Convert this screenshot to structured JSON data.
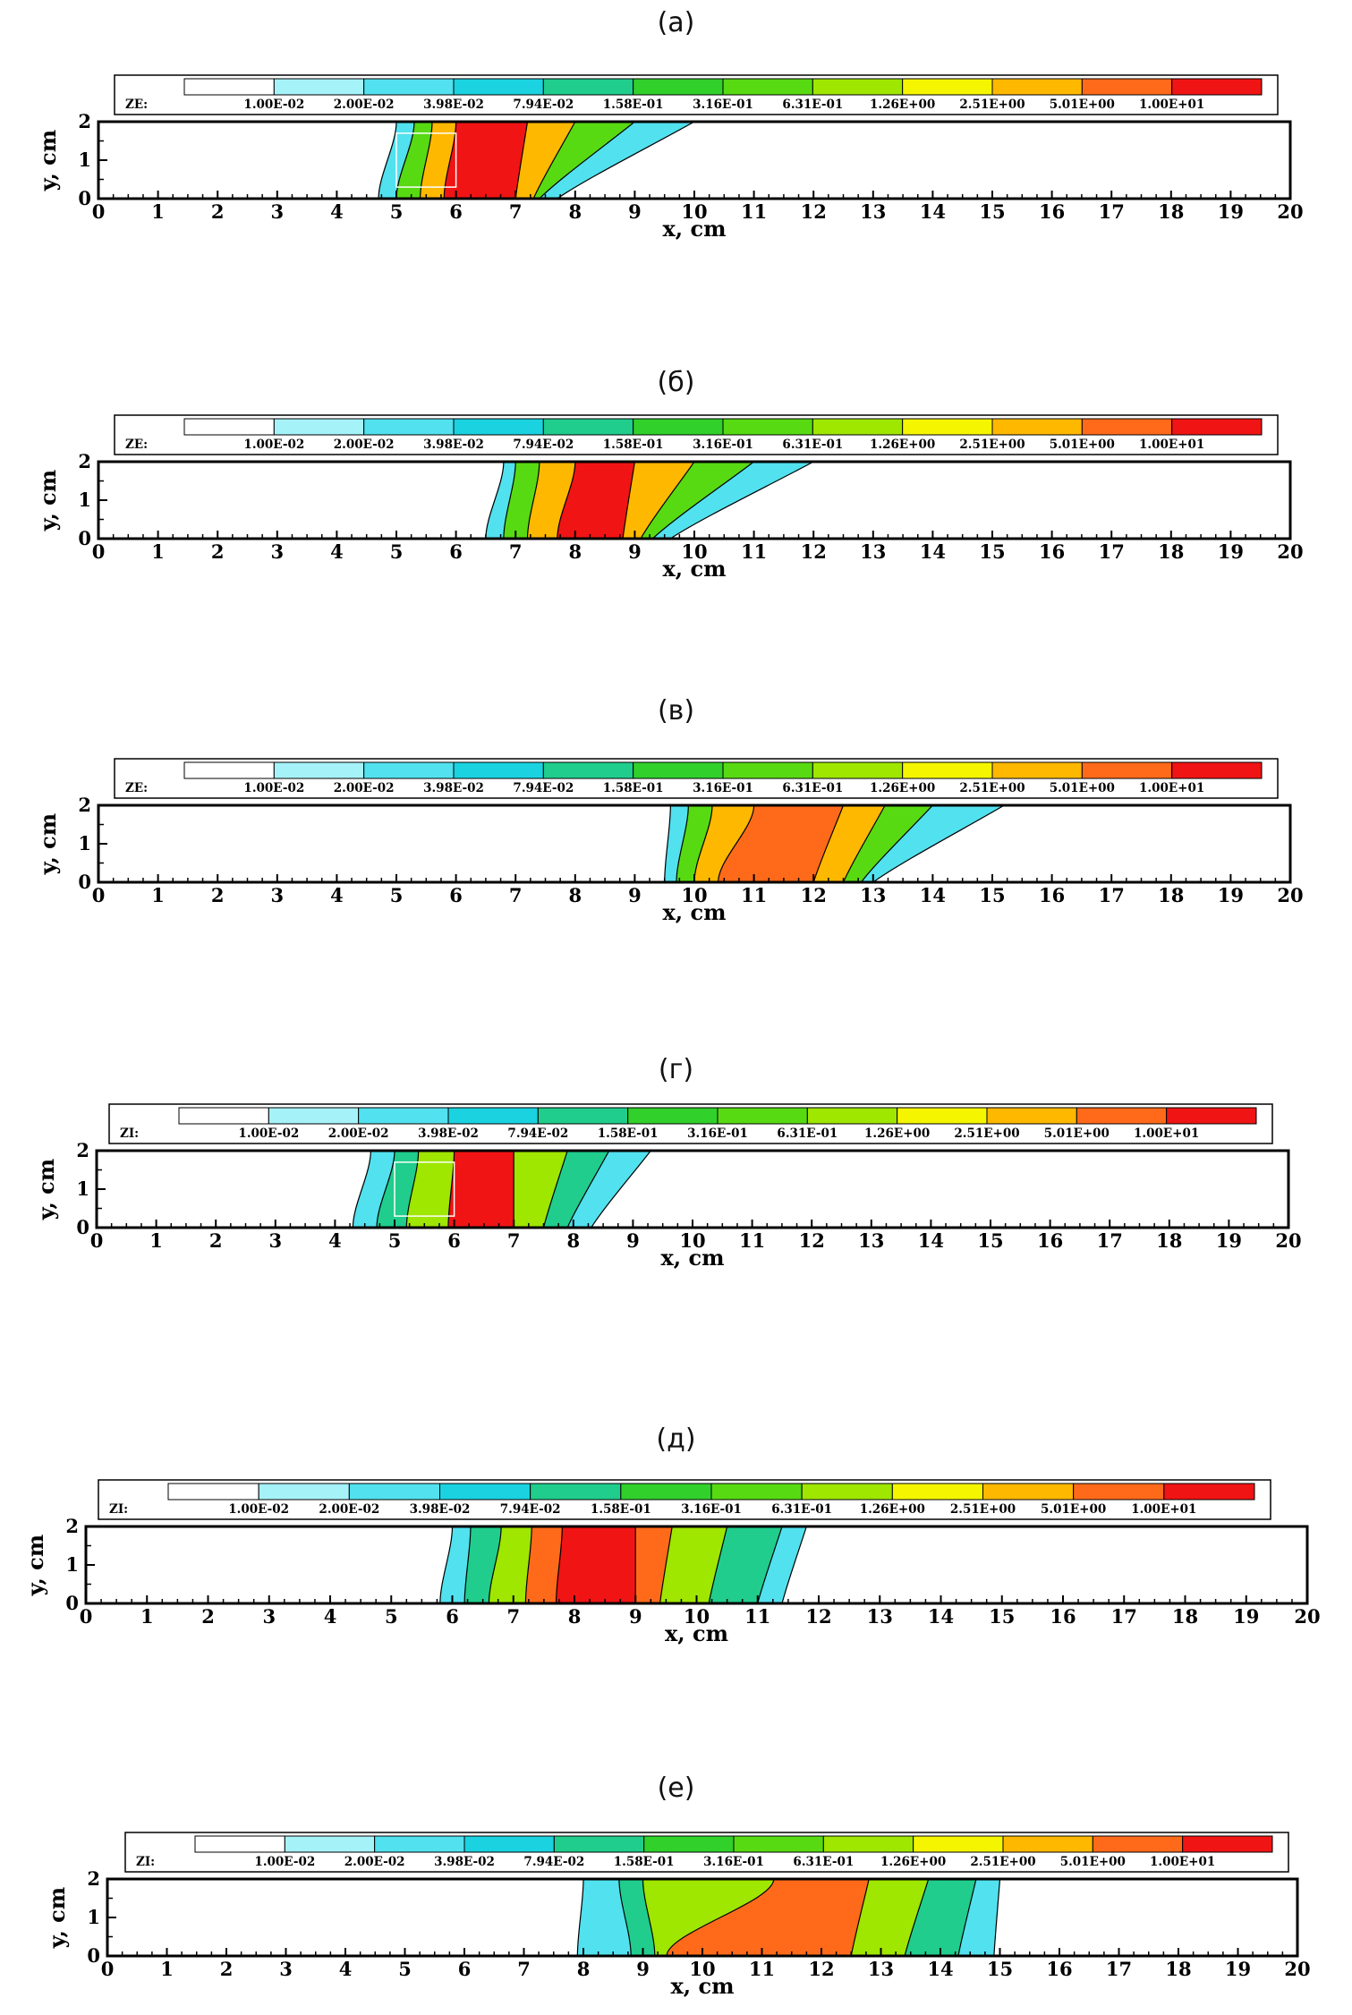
{
  "captions": [
    "(а)",
    "(б)",
    "(в)",
    "(г)",
    "(д)",
    "(е)"
  ],
  "colors": {
    "levels": [
      "#ffffff",
      "#a6f2f9",
      "#52e1ee",
      "#1ad2e0",
      "#20cd8c",
      "#31d02b",
      "#58da12",
      "#9fe600",
      "#f5f500",
      "#ffb800",
      "#ff6a1a",
      "#f01414"
    ]
  },
  "chart_data": [
    {
      "type": "heatmap",
      "title": "(а)",
      "variable_label": "ZE:",
      "legend_levels": [
        "1.00E-02",
        "2.00E-02",
        "3.98E-02",
        "7.94E-02",
        "1.58E-01",
        "3.16E-01",
        "6.31E-01",
        "1.26E+00",
        "2.51E+00",
        "5.01E+00",
        "1.00E+01"
      ],
      "xlabel": "x, cm",
      "ylabel": "y, cm",
      "xlim": [
        0,
        20
      ],
      "ylim": [
        0,
        2
      ],
      "x_ticks": [
        0,
        1,
        2,
        3,
        4,
        5,
        6,
        7,
        8,
        9,
        10,
        11,
        12,
        13,
        14,
        15,
        16,
        17,
        18,
        19,
        20
      ],
      "y_ticks": [
        0,
        1,
        2
      ],
      "contours": [
        {
          "level": 2,
          "front_top": 5.0,
          "front_bottom": 4.7,
          "back_top": 10.0,
          "back_bottom": 7.7
        },
        {
          "level": 6,
          "front_top": 5.3,
          "front_bottom": 5.0,
          "back_top": 9.0,
          "back_bottom": 7.4
        },
        {
          "level": 9,
          "front_top": 5.6,
          "front_bottom": 5.4,
          "back_top": 8.0,
          "back_bottom": 7.3
        },
        {
          "level": 11,
          "front_top": 6.0,
          "front_bottom": 5.8,
          "back_top": 7.2,
          "back_bottom": 7.0
        }
      ],
      "inset_box": {
        "x0": 5.0,
        "x1": 6.0,
        "y0": 0.3,
        "y1": 1.7
      }
    },
    {
      "type": "heatmap",
      "title": "(б)",
      "variable_label": "ZE:",
      "legend_levels": [
        "1.00E-02",
        "2.00E-02",
        "3.98E-02",
        "7.94E-02",
        "1.58E-01",
        "3.16E-01",
        "6.31E-01",
        "1.26E+00",
        "2.51E+00",
        "5.01E+00",
        "1.00E+01"
      ],
      "xlabel": "x, cm",
      "ylabel": "y, cm",
      "xlim": [
        0,
        20
      ],
      "ylim": [
        0,
        2
      ],
      "x_ticks": [
        0,
        1,
        2,
        3,
        4,
        5,
        6,
        7,
        8,
        9,
        10,
        11,
        12,
        13,
        14,
        15,
        16,
        17,
        18,
        19,
        20
      ],
      "y_ticks": [
        0,
        1,
        2
      ],
      "contours": [
        {
          "level": 2,
          "front_top": 6.8,
          "front_bottom": 6.5,
          "back_top": 12.0,
          "back_bottom": 9.6
        },
        {
          "level": 6,
          "front_top": 7.0,
          "front_bottom": 6.8,
          "back_top": 11.0,
          "back_bottom": 9.3
        },
        {
          "level": 9,
          "front_top": 7.4,
          "front_bottom": 7.2,
          "back_top": 10.0,
          "back_bottom": 9.1
        },
        {
          "level": 11,
          "front_top": 8.0,
          "front_bottom": 7.7,
          "back_top": 9.0,
          "back_bottom": 8.8
        }
      ]
    },
    {
      "type": "heatmap",
      "title": "(в)",
      "variable_label": "ZE:",
      "legend_levels": [
        "1.00E-02",
        "2.00E-02",
        "3.98E-02",
        "7.94E-02",
        "1.58E-01",
        "3.16E-01",
        "6.31E-01",
        "1.26E+00",
        "2.51E+00",
        "5.01E+00",
        "1.00E+01"
      ],
      "xlabel": "x, cm",
      "ylabel": "y, cm",
      "xlim": [
        0,
        20
      ],
      "ylim": [
        0,
        2
      ],
      "x_ticks": [
        0,
        1,
        2,
        3,
        4,
        5,
        6,
        7,
        8,
        9,
        10,
        11,
        12,
        13,
        14,
        15,
        16,
        17,
        18,
        19,
        20
      ],
      "y_ticks": [
        0,
        1,
        2
      ],
      "contours": [
        {
          "level": 2,
          "front_top": 9.6,
          "front_bottom": 9.5,
          "back_top": 15.2,
          "back_bottom": 13.0
        },
        {
          "level": 6,
          "front_top": 9.9,
          "front_bottom": 9.7,
          "back_top": 14.0,
          "back_bottom": 12.8
        },
        {
          "level": 9,
          "front_top": 10.3,
          "front_bottom": 10.0,
          "back_top": 13.2,
          "back_bottom": 12.5
        },
        {
          "level": 10,
          "front_top": 11.0,
          "front_bottom": 10.4,
          "back_top": 12.5,
          "back_bottom": 12.0
        }
      ]
    },
    {
      "type": "heatmap",
      "title": "(г)",
      "variable_label": "ZI:",
      "legend_levels": [
        "1.00E-02",
        "2.00E-02",
        "3.98E-02",
        "7.94E-02",
        "1.58E-01",
        "3.16E-01",
        "6.31E-01",
        "1.26E+00",
        "2.51E+00",
        "5.01E+00",
        "1.00E+01"
      ],
      "xlabel": "x, cm",
      "ylabel": "y, cm",
      "xlim": [
        0,
        20
      ],
      "ylim": [
        0,
        2
      ],
      "x_ticks": [
        0,
        1,
        2,
        3,
        4,
        5,
        6,
        7,
        8,
        9,
        10,
        11,
        12,
        13,
        14,
        15,
        16,
        17,
        18,
        19,
        20
      ],
      "y_ticks": [
        0,
        1,
        2
      ],
      "contours": [
        {
          "level": 2,
          "front_top": 4.6,
          "front_bottom": 4.3,
          "back_top": 9.3,
          "back_bottom": 8.3
        },
        {
          "level": 4,
          "front_top": 5.0,
          "front_bottom": 4.7,
          "back_top": 8.6,
          "back_bottom": 7.9
        },
        {
          "level": 7,
          "front_top": 5.4,
          "front_bottom": 5.2,
          "back_top": 7.9,
          "back_bottom": 7.5
        },
        {
          "level": 11,
          "front_top": 6.0,
          "front_bottom": 5.9,
          "back_top": 7.0,
          "back_bottom": 7.0
        }
      ],
      "inset_box": {
        "x0": 5.0,
        "x1": 6.0,
        "y0": 0.3,
        "y1": 1.7
      }
    },
    {
      "type": "heatmap",
      "title": "(д)",
      "variable_label": "ZI:",
      "legend_levels": [
        "1.00E-02",
        "2.00E-02",
        "3.98E-02",
        "7.94E-02",
        "1.58E-01",
        "3.16E-01",
        "6.31E-01",
        "1.26E+00",
        "2.51E+00",
        "5.01E+00",
        "1.00E+01"
      ],
      "xlabel": "x, cm",
      "ylabel": "y, cm",
      "xlim": [
        0,
        20
      ],
      "ylim": [
        0,
        2
      ],
      "x_ticks": [
        0,
        1,
        2,
        3,
        4,
        5,
        6,
        7,
        8,
        9,
        10,
        11,
        12,
        13,
        14,
        15,
        16,
        17,
        18,
        19,
        20
      ],
      "y_ticks": [
        0,
        1,
        2
      ],
      "contours": [
        {
          "level": 2,
          "front_top": 6.0,
          "front_bottom": 5.8,
          "back_top": 11.8,
          "back_bottom": 11.4
        },
        {
          "level": 4,
          "front_top": 6.3,
          "front_bottom": 6.2,
          "back_top": 11.4,
          "back_bottom": 11.0
        },
        {
          "level": 7,
          "front_top": 6.8,
          "front_bottom": 6.6,
          "back_top": 10.5,
          "back_bottom": 10.2
        },
        {
          "level": 10,
          "front_top": 7.3,
          "front_bottom": 7.2,
          "back_top": 9.6,
          "back_bottom": 9.4
        },
        {
          "level": 11,
          "front_top": 7.8,
          "front_bottom": 7.7,
          "back_top": 9.0,
          "back_bottom": 9.0
        }
      ]
    },
    {
      "type": "heatmap",
      "title": "(е)",
      "variable_label": "ZI:",
      "legend_levels": [
        "1.00E-02",
        "2.00E-02",
        "3.98E-02",
        "7.94E-02",
        "1.58E-01",
        "3.16E-01",
        "6.31E-01",
        "1.26E+00",
        "2.51E+00",
        "5.01E+00",
        "1.00E+01"
      ],
      "xlabel": "x, cm",
      "ylabel": "y, cm",
      "xlim": [
        0,
        20
      ],
      "ylim": [
        0,
        2
      ],
      "x_ticks": [
        0,
        1,
        2,
        3,
        4,
        5,
        6,
        7,
        8,
        9,
        10,
        11,
        12,
        13,
        14,
        15,
        16,
        17,
        18,
        19,
        20
      ],
      "y_ticks": [
        0,
        1,
        2
      ],
      "contours": [
        {
          "level": 2,
          "front_top": 8.0,
          "front_bottom": 7.9,
          "back_top": 15.0,
          "back_bottom": 14.9
        },
        {
          "level": 4,
          "front_top": 8.6,
          "front_bottom": 8.8,
          "back_top": 14.6,
          "back_bottom": 14.3
        },
        {
          "level": 7,
          "front_top": 9.0,
          "front_bottom": 9.2,
          "back_top": 13.8,
          "back_bottom": 13.4
        },
        {
          "level": 10,
          "front_top": 11.2,
          "front_bottom": 9.4,
          "back_top": 12.8,
          "back_bottom": 12.5
        }
      ]
    }
  ]
}
